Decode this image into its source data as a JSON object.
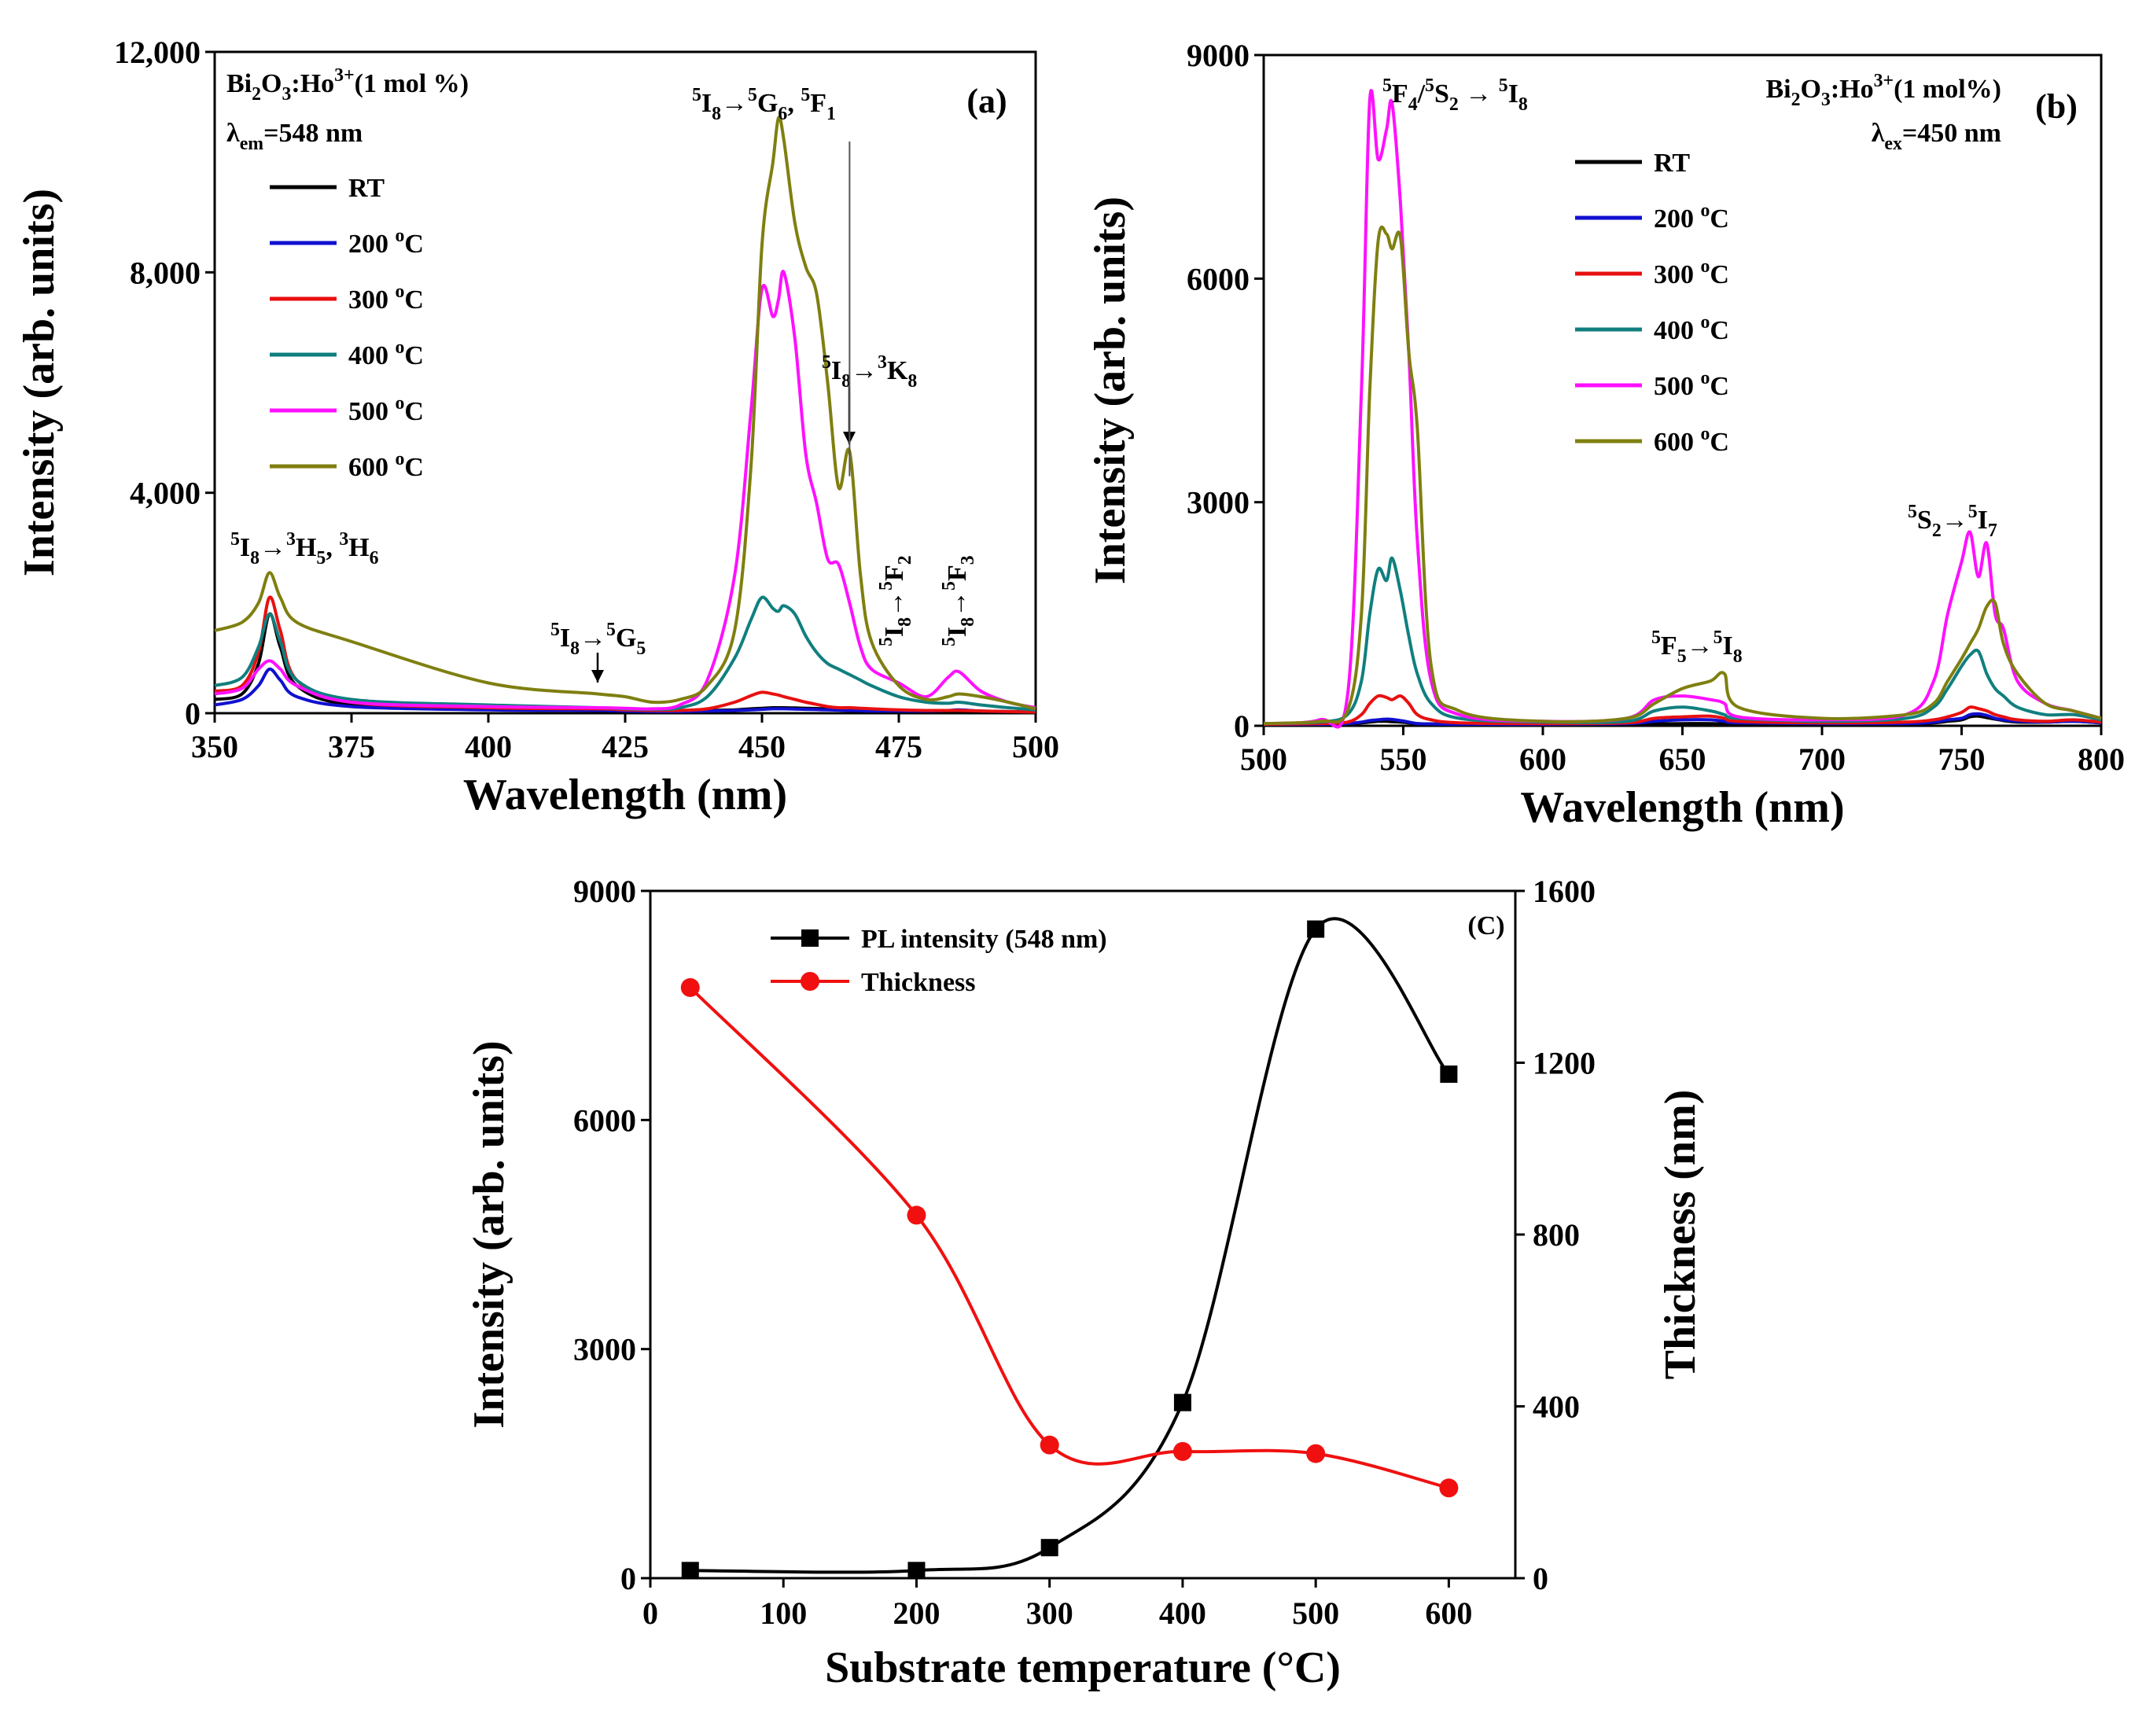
{
  "chart_data": [
    {
      "type": "line",
      "panel_label": "(a)",
      "xlabel": "Wavelength (nm)",
      "ylabel": "Intensity (arb. units)",
      "xlim": [
        350,
        500
      ],
      "ylim": [
        0,
        12000
      ],
      "xticks": [
        "350",
        "375",
        "400",
        "425",
        "450",
        "475",
        "500"
      ],
      "yticks": [
        "0",
        "4,000",
        "8,000",
        "12,000"
      ],
      "sample": "Bi2O3:Ho3+(1 mol %)",
      "condition": "λem=548 nm",
      "annotations": [
        "5I8→3H5, 3H6",
        "5I8→5G5",
        "5I8→5G6, 5F1",
        "5I8→3K8",
        "5I8→5F2",
        "5I8→5F3"
      ],
      "x": [
        350,
        355,
        358,
        360,
        362,
        365,
        375,
        400,
        420,
        425,
        430,
        435,
        440,
        445,
        448,
        450,
        452,
        453,
        454,
        456,
        458,
        460,
        462,
        464,
        466,
        468,
        470,
        475,
        480,
        484,
        486,
        490,
        495,
        500
      ],
      "series": [
        {
          "name": "RT",
          "color": "#000000",
          "values": [
            250,
            350,
            900,
            1800,
            1200,
            500,
            150,
            80,
            60,
            50,
            40,
            40,
            50,
            60,
            80,
            90,
            100,
            100,
            100,
            95,
            90,
            85,
            80,
            75,
            70,
            60,
            55,
            50,
            40,
            35,
            35,
            30,
            25,
            20
          ]
        },
        {
          "name": "200 °C",
          "color": "#1010d0",
          "values": [
            150,
            250,
            500,
            800,
            600,
            300,
            120,
            60,
            50,
            40,
            30,
            30,
            40,
            50,
            60,
            70,
            80,
            80,
            80,
            75,
            70,
            65,
            60,
            55,
            50,
            45,
            40,
            40,
            40,
            50,
            60,
            40,
            30,
            20
          ]
        },
        {
          "name": "300 °C",
          "color": "#e81010",
          "values": [
            400,
            500,
            1100,
            2100,
            1500,
            600,
            200,
            100,
            80,
            60,
            50,
            50,
            80,
            200,
            320,
            380,
            350,
            330,
            300,
            250,
            200,
            160,
            120,
            100,
            100,
            90,
            80,
            60,
            50,
            50,
            50,
            40,
            30,
            20
          ]
        },
        {
          "name": "400 °C",
          "color": "#107f7f",
          "values": [
            500,
            650,
            1200,
            1800,
            1300,
            600,
            250,
            150,
            100,
            80,
            70,
            100,
            300,
            1000,
            1700,
            2100,
            1900,
            1850,
            1950,
            1800,
            1400,
            1100,
            900,
            800,
            700,
            600,
            500,
            300,
            200,
            180,
            200,
            150,
            100,
            60
          ]
        },
        {
          "name": "500 °C",
          "color": "#ff10ff",
          "values": [
            350,
            450,
            800,
            950,
            800,
            500,
            200,
            120,
            100,
            90,
            80,
            150,
            600,
            2500,
            5500,
            7700,
            7200,
            7500,
            8000,
            6800,
            4700,
            3800,
            2800,
            2700,
            2000,
            1200,
            800,
            550,
            300,
            650,
            750,
            400,
            200,
            100
          ]
        },
        {
          "name": "600 °C",
          "color": "#7f7f10",
          "values": [
            1500,
            1650,
            2000,
            2550,
            2100,
            1650,
            1300,
            550,
            350,
            300,
            200,
            250,
            500,
            1500,
            4500,
            8500,
            10000,
            10800,
            10400,
            8900,
            8100,
            7600,
            6000,
            4100,
            4750,
            2500,
            1300,
            500,
            250,
            300,
            350,
            300,
            200,
            80
          ]
        }
      ]
    },
    {
      "type": "line",
      "panel_label": "(b)",
      "xlabel": "Wavelength (nm)",
      "ylabel": "Intensity (arb. units)",
      "xlim": [
        500,
        800
      ],
      "ylim": [
        0,
        9000
      ],
      "xticks": [
        "500",
        "550",
        "600",
        "650",
        "700",
        "750",
        "800"
      ],
      "yticks": [
        "0",
        "3000",
        "6000",
        "9000"
      ],
      "sample": "Bi2O3:Ho3+(1 mol%)",
      "condition": "λex=450 nm",
      "annotations": [
        "5F4/5S2 → 5I8",
        "5F5→5I8",
        "5S2→5I7"
      ],
      "x": [
        500,
        520,
        530,
        535,
        538,
        541,
        544,
        546,
        549,
        552,
        555,
        560,
        570,
        600,
        630,
        640,
        650,
        660,
        665,
        670,
        700,
        730,
        740,
        745,
        750,
        753,
        756,
        759,
        762,
        765,
        770,
        780,
        790,
        800
      ],
      "series": [
        {
          "name": "RT",
          "color": "#000000",
          "values": [
            20,
            20,
            30,
            40,
            50,
            60,
            60,
            55,
            50,
            40,
            30,
            25,
            20,
            20,
            20,
            25,
            30,
            30,
            25,
            20,
            20,
            30,
            40,
            60,
            80,
            120,
            130,
            110,
            90,
            70,
            50,
            50,
            60,
            40
          ]
        },
        {
          "name": "200 °C",
          "color": "#1010d0",
          "values": [
            20,
            20,
            30,
            50,
            70,
            80,
            90,
            85,
            70,
            50,
            30,
            25,
            20,
            20,
            30,
            60,
            80,
            80,
            60,
            40,
            30,
            30,
            50,
            80,
            100,
            150,
            160,
            140,
            100,
            80,
            60,
            50,
            60,
            40
          ]
        },
        {
          "name": "300 °C",
          "color": "#e81010",
          "values": [
            20,
            30,
            50,
            150,
            300,
            400,
            380,
            350,
            400,
            300,
            150,
            80,
            40,
            30,
            40,
            100,
            120,
            130,
            100,
            60,
            40,
            50,
            80,
            120,
            180,
            250,
            230,
            200,
            150,
            120,
            80,
            60,
            80,
            50
          ]
        },
        {
          "name": "400 °C",
          "color": "#107f7f",
          "values": [
            30,
            50,
            150,
            600,
            1500,
            2100,
            1950,
            2250,
            1800,
            1200,
            700,
            300,
            100,
            50,
            60,
            200,
            250,
            200,
            150,
            100,
            60,
            100,
            250,
            500,
            800,
            950,
            1000,
            700,
            500,
            400,
            250,
            150,
            150,
            80
          ]
        },
        {
          "name": "500 °C",
          "color": "#ff10ff",
          "values": [
            30,
            80,
            400,
            4500,
            8400,
            7600,
            8000,
            8350,
            7000,
            5000,
            2500,
            600,
            150,
            60,
            100,
            350,
            400,
            350,
            300,
            120,
            80,
            150,
            600,
            1500,
            2200,
            2600,
            2000,
            2450,
            1500,
            1300,
            600,
            300,
            200,
            100
          ]
        },
        {
          "name": "600 °C",
          "color": "#7f7f10",
          "values": [
            30,
            60,
            200,
            1500,
            4500,
            6500,
            6600,
            6400,
            6550,
            5000,
            4000,
            800,
            200,
            60,
            100,
            300,
            500,
            600,
            700,
            250,
            100,
            150,
            300,
            600,
            900,
            1100,
            1300,
            1600,
            1650,
            1100,
            700,
            300,
            200,
            100
          ]
        }
      ]
    },
    {
      "type": "line",
      "panel_label": "(C)",
      "xlabel": "Substrate temperature (°C)",
      "ylabel": "Intensity (arb. units)",
      "y2label": "Thickness (nm)",
      "xlim": [
        0,
        650
      ],
      "ylim": [
        0,
        9000
      ],
      "y2lim": [
        0,
        1600
      ],
      "xticks": [
        "0",
        "100",
        "200",
        "300",
        "400",
        "500",
        "600"
      ],
      "yticks": [
        "0",
        "3000",
        "6000",
        "9000"
      ],
      "y2ticks": [
        "0",
        "400",
        "800",
        "1200",
        "1600"
      ],
      "legend_position": "top-left",
      "series": [
        {
          "name": "PL intensity (548 nm)",
          "color": "#000000",
          "marker": "square",
          "axis": "left",
          "x": [
            30,
            200,
            300,
            400,
            500,
            600
          ],
          "values": [
            100,
            100,
            400,
            2300,
            8500,
            6600
          ]
        },
        {
          "name": "Thickness",
          "color": "#f01010",
          "marker": "circle",
          "axis": "right",
          "x": [
            30,
            200,
            300,
            400,
            500,
            600
          ],
          "values": [
            1375,
            845,
            310,
            295,
            290,
            210
          ]
        }
      ]
    }
  ]
}
